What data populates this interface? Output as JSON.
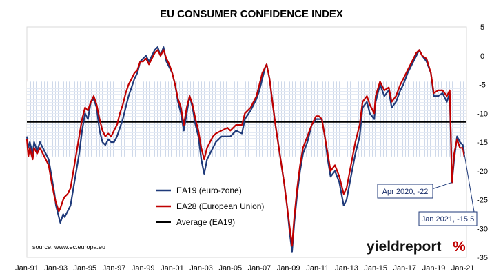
{
  "chart_data": {
    "type": "line",
    "title": "EU CONSUMER CONFIDENCE INDEX",
    "xlabel": "",
    "ylabel": "",
    "x_ticks": [
      "Jan-91",
      "Jan-93",
      "Jan-95",
      "Jan-97",
      "Jan-99",
      "Jan-01",
      "Jan-03",
      "Jan-05",
      "Jan-07",
      "Jan-09",
      "Jan-11",
      "Jan-13",
      "Jan-15",
      "Jan-17",
      "Jan-19",
      "Jan-21"
    ],
    "xlim": [
      1991.0,
      2021.25
    ],
    "y_ticks": [
      5,
      0,
      -5,
      -10,
      -15,
      -20,
      -25,
      -30,
      -35
    ],
    "ylim": [
      -35,
      5
    ],
    "band": [
      -17.5,
      -4.5
    ],
    "average": {
      "name": "Average (EA19)",
      "value": -11.5,
      "color": "#000000"
    },
    "series": [
      {
        "name": "EA19 (euro-zone)",
        "color": "#1f3a7a",
        "points": [
          [
            1991.0,
            -14
          ],
          [
            1991.1,
            -16
          ],
          [
            1991.2,
            -15
          ],
          [
            1991.4,
            -17
          ],
          [
            1991.5,
            -15
          ],
          [
            1991.7,
            -16.5
          ],
          [
            1991.9,
            -15
          ],
          [
            1992.0,
            -15.5
          ],
          [
            1992.2,
            -16.5
          ],
          [
            1992.4,
            -17.5
          ],
          [
            1992.5,
            -18
          ],
          [
            1992.7,
            -21
          ],
          [
            1992.9,
            -24
          ],
          [
            1993.0,
            -26
          ],
          [
            1993.2,
            -28
          ],
          [
            1993.3,
            -29
          ],
          [
            1993.5,
            -27.5
          ],
          [
            1993.6,
            -28
          ],
          [
            1993.8,
            -27
          ],
          [
            1994.0,
            -26
          ],
          [
            1994.2,
            -23
          ],
          [
            1994.4,
            -20
          ],
          [
            1994.6,
            -17
          ],
          [
            1994.8,
            -13
          ],
          [
            1995.0,
            -10
          ],
          [
            1995.2,
            -11
          ],
          [
            1995.4,
            -8
          ],
          [
            1995.6,
            -7.5
          ],
          [
            1995.8,
            -9
          ],
          [
            1996.0,
            -13
          ],
          [
            1996.2,
            -15
          ],
          [
            1996.4,
            -15.5
          ],
          [
            1996.6,
            -14.5
          ],
          [
            1996.8,
            -15
          ],
          [
            1997.0,
            -15
          ],
          [
            1997.2,
            -14
          ],
          [
            1997.4,
            -12.5
          ],
          [
            1997.6,
            -11
          ],
          [
            1997.8,
            -9
          ],
          [
            1998.0,
            -7
          ],
          [
            1998.2,
            -5.5
          ],
          [
            1998.4,
            -4
          ],
          [
            1998.6,
            -3
          ],
          [
            1998.8,
            -1
          ],
          [
            1999.0,
            -0.5
          ],
          [
            1999.2,
            0
          ],
          [
            1999.4,
            -1
          ],
          [
            1999.6,
            0
          ],
          [
            1999.8,
            1
          ],
          [
            2000.0,
            1.5
          ],
          [
            2000.2,
            0
          ],
          [
            2000.4,
            1.5
          ],
          [
            2000.6,
            -1
          ],
          [
            2000.8,
            -2
          ],
          [
            2001.0,
            -3
          ],
          [
            2001.2,
            -5
          ],
          [
            2001.4,
            -8
          ],
          [
            2001.6,
            -10
          ],
          [
            2001.8,
            -13
          ],
          [
            2002.0,
            -10
          ],
          [
            2002.2,
            -7
          ],
          [
            2002.4,
            -9
          ],
          [
            2002.6,
            -12
          ],
          [
            2002.8,
            -14
          ],
          [
            2003.0,
            -18
          ],
          [
            2003.2,
            -20.5
          ],
          [
            2003.4,
            -18
          ],
          [
            2003.6,
            -17
          ],
          [
            2003.8,
            -16
          ],
          [
            2004.0,
            -15
          ],
          [
            2004.4,
            -14
          ],
          [
            2004.8,
            -14
          ],
          [
            2005.0,
            -14
          ],
          [
            2005.4,
            -13
          ],
          [
            2005.8,
            -13.5
          ],
          [
            2006.0,
            -11
          ],
          [
            2006.4,
            -9.5
          ],
          [
            2006.8,
            -7.5
          ],
          [
            2007.0,
            -6
          ],
          [
            2007.2,
            -4
          ],
          [
            2007.4,
            -2
          ],
          [
            2007.5,
            -1.5
          ],
          [
            2007.7,
            -4
          ],
          [
            2007.9,
            -8
          ],
          [
            2008.1,
            -12
          ],
          [
            2008.4,
            -17
          ],
          [
            2008.7,
            -22
          ],
          [
            2008.9,
            -26
          ],
          [
            2009.1,
            -31
          ],
          [
            2009.25,
            -34
          ],
          [
            2009.4,
            -29
          ],
          [
            2009.6,
            -24
          ],
          [
            2009.8,
            -20
          ],
          [
            2010.0,
            -17
          ],
          [
            2010.3,
            -15
          ],
          [
            2010.6,
            -12
          ],
          [
            2010.9,
            -11
          ],
          [
            2011.1,
            -11
          ],
          [
            2011.3,
            -11
          ],
          [
            2011.5,
            -14
          ],
          [
            2011.7,
            -18
          ],
          [
            2011.9,
            -21
          ],
          [
            2012.2,
            -20
          ],
          [
            2012.5,
            -22
          ],
          [
            2012.8,
            -26
          ],
          [
            2013.0,
            -25
          ],
          [
            2013.3,
            -21
          ],
          [
            2013.6,
            -17
          ],
          [
            2013.9,
            -14
          ],
          [
            2014.1,
            -9
          ],
          [
            2014.4,
            -8
          ],
          [
            2014.6,
            -10
          ],
          [
            2014.9,
            -11
          ],
          [
            2015.0,
            -8
          ],
          [
            2015.3,
            -5
          ],
          [
            2015.6,
            -7
          ],
          [
            2015.9,
            -6
          ],
          [
            2016.1,
            -9
          ],
          [
            2016.4,
            -8
          ],
          [
            2016.7,
            -6
          ],
          [
            2016.9,
            -5
          ],
          [
            2017.2,
            -3
          ],
          [
            2017.5,
            -1.5
          ],
          [
            2017.8,
            0
          ],
          [
            2018.0,
            1
          ],
          [
            2018.2,
            0
          ],
          [
            2018.5,
            -1
          ],
          [
            2018.8,
            -3
          ],
          [
            2019.0,
            -7
          ],
          [
            2019.3,
            -7
          ],
          [
            2019.6,
            -6.5
          ],
          [
            2019.9,
            -8
          ],
          [
            2020.1,
            -6.5
          ],
          [
            2020.25,
            -22
          ],
          [
            2020.4,
            -18
          ],
          [
            2020.6,
            -14
          ],
          [
            2020.8,
            -15
          ],
          [
            2021.0,
            -15.5
          ],
          [
            2021.1,
            -17
          ]
        ]
      },
      {
        "name": "EA28 (European Union)",
        "color": "#c00000",
        "points": [
          [
            1991.0,
            -14.5
          ],
          [
            1991.1,
            -17.5
          ],
          [
            1991.2,
            -16
          ],
          [
            1991.4,
            -18
          ],
          [
            1991.5,
            -16
          ],
          [
            1991.7,
            -17
          ],
          [
            1991.9,
            -16
          ],
          [
            1992.0,
            -16.5
          ],
          [
            1992.2,
            -17.5
          ],
          [
            1992.4,
            -18.5
          ],
          [
            1992.5,
            -19
          ],
          [
            1992.7,
            -22
          ],
          [
            1992.9,
            -24.5
          ],
          [
            1993.0,
            -25.5
          ],
          [
            1993.2,
            -27
          ],
          [
            1993.3,
            -26.5
          ],
          [
            1993.5,
            -25
          ],
          [
            1993.6,
            -24.5
          ],
          [
            1993.8,
            -24
          ],
          [
            1994.0,
            -23
          ],
          [
            1994.2,
            -20
          ],
          [
            1994.4,
            -17
          ],
          [
            1994.6,
            -14
          ],
          [
            1994.8,
            -11
          ],
          [
            1995.0,
            -9
          ],
          [
            1995.2,
            -9.5
          ],
          [
            1995.4,
            -8
          ],
          [
            1995.6,
            -7
          ],
          [
            1995.8,
            -8.5
          ],
          [
            1996.0,
            -11
          ],
          [
            1996.2,
            -13
          ],
          [
            1996.4,
            -14
          ],
          [
            1996.6,
            -13.5
          ],
          [
            1996.8,
            -14
          ],
          [
            1997.0,
            -13
          ],
          [
            1997.2,
            -12
          ],
          [
            1997.4,
            -10
          ],
          [
            1997.6,
            -8.5
          ],
          [
            1997.8,
            -6.5
          ],
          [
            1998.0,
            -5
          ],
          [
            1998.2,
            -4
          ],
          [
            1998.4,
            -3
          ],
          [
            1998.6,
            -2.5
          ],
          [
            1998.8,
            -1
          ],
          [
            1999.0,
            -1
          ],
          [
            1999.2,
            -0.5
          ],
          [
            1999.4,
            -1.5
          ],
          [
            1999.6,
            -0.5
          ],
          [
            1999.8,
            0.5
          ],
          [
            2000.0,
            1
          ],
          [
            2000.2,
            0
          ],
          [
            2000.4,
            1
          ],
          [
            2000.6,
            -0.5
          ],
          [
            2000.8,
            -1.5
          ],
          [
            2001.0,
            -3
          ],
          [
            2001.2,
            -5
          ],
          [
            2001.4,
            -7.5
          ],
          [
            2001.6,
            -9
          ],
          [
            2001.8,
            -12
          ],
          [
            2002.0,
            -9
          ],
          [
            2002.2,
            -7
          ],
          [
            2002.4,
            -8.5
          ],
          [
            2002.6,
            -11
          ],
          [
            2002.8,
            -13
          ],
          [
            2003.0,
            -16
          ],
          [
            2003.2,
            -18
          ],
          [
            2003.4,
            -16
          ],
          [
            2003.6,
            -15
          ],
          [
            2003.8,
            -14
          ],
          [
            2004.0,
            -13.5
          ],
          [
            2004.4,
            -13
          ],
          [
            2004.8,
            -12.5
          ],
          [
            2005.0,
            -13
          ],
          [
            2005.4,
            -12
          ],
          [
            2005.8,
            -12
          ],
          [
            2006.0,
            -10
          ],
          [
            2006.4,
            -9
          ],
          [
            2006.8,
            -7
          ],
          [
            2007.0,
            -5
          ],
          [
            2007.2,
            -3
          ],
          [
            2007.4,
            -2
          ],
          [
            2007.5,
            -1.5
          ],
          [
            2007.7,
            -4
          ],
          [
            2007.9,
            -8
          ],
          [
            2008.1,
            -12
          ],
          [
            2008.4,
            -17
          ],
          [
            2008.7,
            -22
          ],
          [
            2008.9,
            -26
          ],
          [
            2009.1,
            -30
          ],
          [
            2009.25,
            -33
          ],
          [
            2009.4,
            -28
          ],
          [
            2009.6,
            -23
          ],
          [
            2009.8,
            -19
          ],
          [
            2010.0,
            -16
          ],
          [
            2010.3,
            -14
          ],
          [
            2010.6,
            -12
          ],
          [
            2010.9,
            -10.5
          ],
          [
            2011.1,
            -10.5
          ],
          [
            2011.3,
            -11
          ],
          [
            2011.5,
            -14
          ],
          [
            2011.7,
            -17
          ],
          [
            2011.9,
            -20
          ],
          [
            2012.2,
            -19
          ],
          [
            2012.5,
            -21
          ],
          [
            2012.8,
            -24
          ],
          [
            2013.0,
            -23
          ],
          [
            2013.3,
            -19
          ],
          [
            2013.6,
            -15
          ],
          [
            2013.9,
            -12
          ],
          [
            2014.1,
            -8
          ],
          [
            2014.4,
            -7
          ],
          [
            2014.6,
            -8.5
          ],
          [
            2014.9,
            -10
          ],
          [
            2015.0,
            -7
          ],
          [
            2015.3,
            -4.5
          ],
          [
            2015.6,
            -6
          ],
          [
            2015.9,
            -5.5
          ],
          [
            2016.1,
            -8
          ],
          [
            2016.4,
            -7
          ],
          [
            2016.7,
            -5
          ],
          [
            2016.9,
            -4
          ],
          [
            2017.2,
            -2.5
          ],
          [
            2017.5,
            -1
          ],
          [
            2017.8,
            0.5
          ],
          [
            2018.0,
            1
          ],
          [
            2018.2,
            0
          ],
          [
            2018.5,
            -0.5
          ],
          [
            2018.8,
            -3
          ],
          [
            2019.0,
            -6.5
          ],
          [
            2019.3,
            -6
          ],
          [
            2019.6,
            -6
          ],
          [
            2019.9,
            -7
          ],
          [
            2020.1,
            -6
          ],
          [
            2020.25,
            -22
          ],
          [
            2020.4,
            -17
          ],
          [
            2020.6,
            -14.5
          ],
          [
            2020.8,
            -16
          ],
          [
            2021.0,
            -16
          ],
          [
            2021.1,
            -17.5
          ]
        ]
      }
    ],
    "annotations": [
      {
        "text": "Apr 2020, -22",
        "x": 2020.25,
        "y": -22
      },
      {
        "text": "Jan 2021, -15.5",
        "x": 2021.0,
        "y": -15.5
      }
    ],
    "legend_position": "bottom-left"
  },
  "legend": {
    "ea19": "EA19 (euro-zone)",
    "ea28": "EA28 (European Union)",
    "avg": "Average (EA19)"
  },
  "source_text": "source: www.ec.europa.eu",
  "logo": {
    "word": "yieldreport",
    "symbol": "%"
  }
}
